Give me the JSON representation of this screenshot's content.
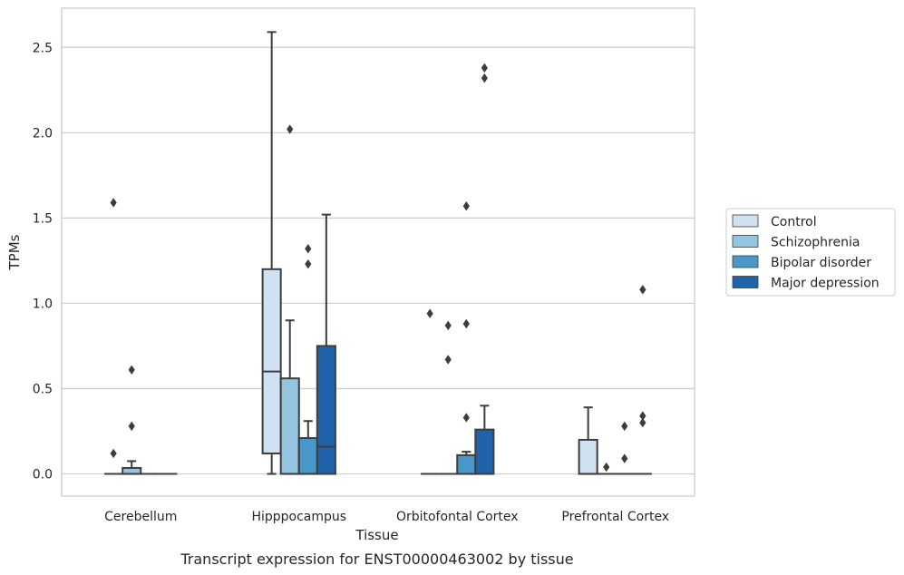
{
  "chart_data": {
    "type": "box",
    "caption": "Transcript expression for ENST00000463002 by tissue",
    "xlabel": "Tissue",
    "ylabel": "TPMs",
    "ylim": [
      -0.13,
      2.73
    ],
    "yticks": [
      0.0,
      0.5,
      1.0,
      1.5,
      2.0,
      2.5
    ],
    "ytick_labels": [
      "0.0",
      "0.5",
      "1.0",
      "1.5",
      "2.0",
      "2.5"
    ],
    "grid": "horizontal",
    "legend_position": "right",
    "categories": [
      "Cerebellum",
      "Hipppocampus",
      "Orbitofontal Cortex",
      "Prefrontal Cortex"
    ],
    "series": [
      {
        "name": "Control",
        "color": "#d0e1f2",
        "boxes": [
          {
            "q1": 0.0,
            "median": 0.0,
            "q3": 0.0,
            "whisker_low": 0.0,
            "whisker_high": 0.0,
            "outliers": [
              0.12,
              1.59
            ]
          },
          {
            "q1": 0.12,
            "median": 0.6,
            "q3": 1.2,
            "whisker_low": 0.0,
            "whisker_high": 2.59,
            "outliers": []
          },
          {
            "q1": 0.0,
            "median": 0.0,
            "q3": 0.0,
            "whisker_low": 0.0,
            "whisker_high": 0.0,
            "outliers": [
              0.94
            ]
          },
          {
            "q1": 0.0,
            "median": 0.0,
            "q3": 0.2,
            "whisker_low": 0.0,
            "whisker_high": 0.39,
            "outliers": []
          }
        ]
      },
      {
        "name": "Schizophrenia",
        "color": "#94c4df",
        "boxes": [
          {
            "q1": 0.0,
            "median": 0.0,
            "q3": 0.035,
            "whisker_low": 0.0,
            "whisker_high": 0.075,
            "outliers": [
              0.28,
              0.61
            ]
          },
          {
            "q1": 0.0,
            "median": 0.0,
            "q3": 0.56,
            "whisker_low": 0.0,
            "whisker_high": 0.9,
            "outliers": [
              2.02
            ]
          },
          {
            "q1": 0.0,
            "median": 0.0,
            "q3": 0.0,
            "whisker_low": 0.0,
            "whisker_high": 0.0,
            "outliers": [
              0.67,
              0.87
            ]
          },
          {
            "q1": 0.0,
            "median": 0.0,
            "q3": 0.0,
            "whisker_low": 0.0,
            "whisker_high": 0.0,
            "outliers": [
              0.04
            ]
          }
        ]
      },
      {
        "name": "Bipolar disorder",
        "color": "#4a98c9",
        "boxes": [
          {
            "q1": 0.0,
            "median": 0.0,
            "q3": 0.0,
            "whisker_low": 0.0,
            "whisker_high": 0.0,
            "outliers": []
          },
          {
            "q1": 0.0,
            "median": 0.0,
            "q3": 0.21,
            "whisker_low": 0.0,
            "whisker_high": 0.31,
            "outliers": [
              1.23,
              1.32
            ]
          },
          {
            "q1": 0.0,
            "median": 0.0,
            "q3": 0.11,
            "whisker_low": 0.0,
            "whisker_high": 0.13,
            "outliers": [
              0.33,
              0.88,
              1.57
            ]
          },
          {
            "q1": 0.0,
            "median": 0.0,
            "q3": 0.0,
            "whisker_low": 0.0,
            "whisker_high": 0.0,
            "outliers": [
              0.09,
              0.28
            ]
          }
        ]
      },
      {
        "name": "Major depression",
        "color": "#2163aa",
        "boxes": [
          {
            "q1": 0.0,
            "median": 0.0,
            "q3": 0.0,
            "whisker_low": 0.0,
            "whisker_high": 0.0,
            "outliers": []
          },
          {
            "q1": 0.0,
            "median": 0.16,
            "q3": 0.75,
            "whisker_low": 0.0,
            "whisker_high": 1.52,
            "outliers": []
          },
          {
            "q1": 0.0,
            "median": 0.0,
            "q3": 0.26,
            "whisker_low": 0.0,
            "whisker_high": 0.4,
            "outliers": [
              2.32,
              2.38
            ]
          },
          {
            "q1": 0.0,
            "median": 0.0,
            "q3": 0.0,
            "whisker_low": 0.0,
            "whisker_high": 0.0,
            "outliers": [
              0.3,
              0.34,
              1.08
            ]
          }
        ]
      }
    ]
  }
}
